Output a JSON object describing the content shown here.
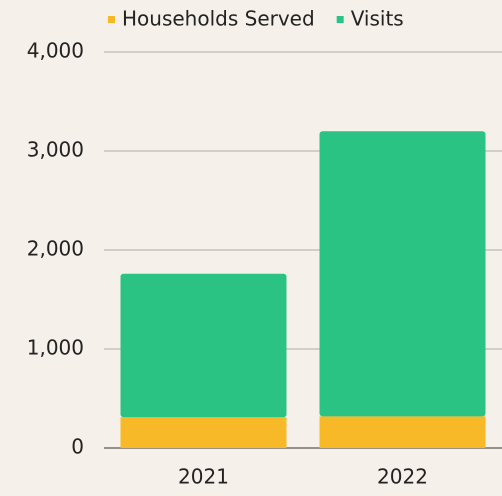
{
  "chart_data": {
    "type": "stacked_bar",
    "categories": [
      "2021",
      "2022"
    ],
    "series": [
      {
        "name": "Households Served",
        "color": "#f7b928",
        "values": [
          310,
          320
        ]
      },
      {
        "name": "Visits",
        "color": "#2ac384",
        "values": [
          1450,
          2880
        ]
      }
    ],
    "ylim": [
      0,
      4000
    ],
    "yticks": [
      0,
      {
        "value": 1000,
        "label": "1,000"
      },
      {
        "value": 2000,
        "label": "2,000"
      },
      {
        "value": 3000,
        "label": "3,000"
      },
      {
        "value": 4000,
        "label": "4,000"
      }
    ],
    "grid": true,
    "legend": "top"
  }
}
